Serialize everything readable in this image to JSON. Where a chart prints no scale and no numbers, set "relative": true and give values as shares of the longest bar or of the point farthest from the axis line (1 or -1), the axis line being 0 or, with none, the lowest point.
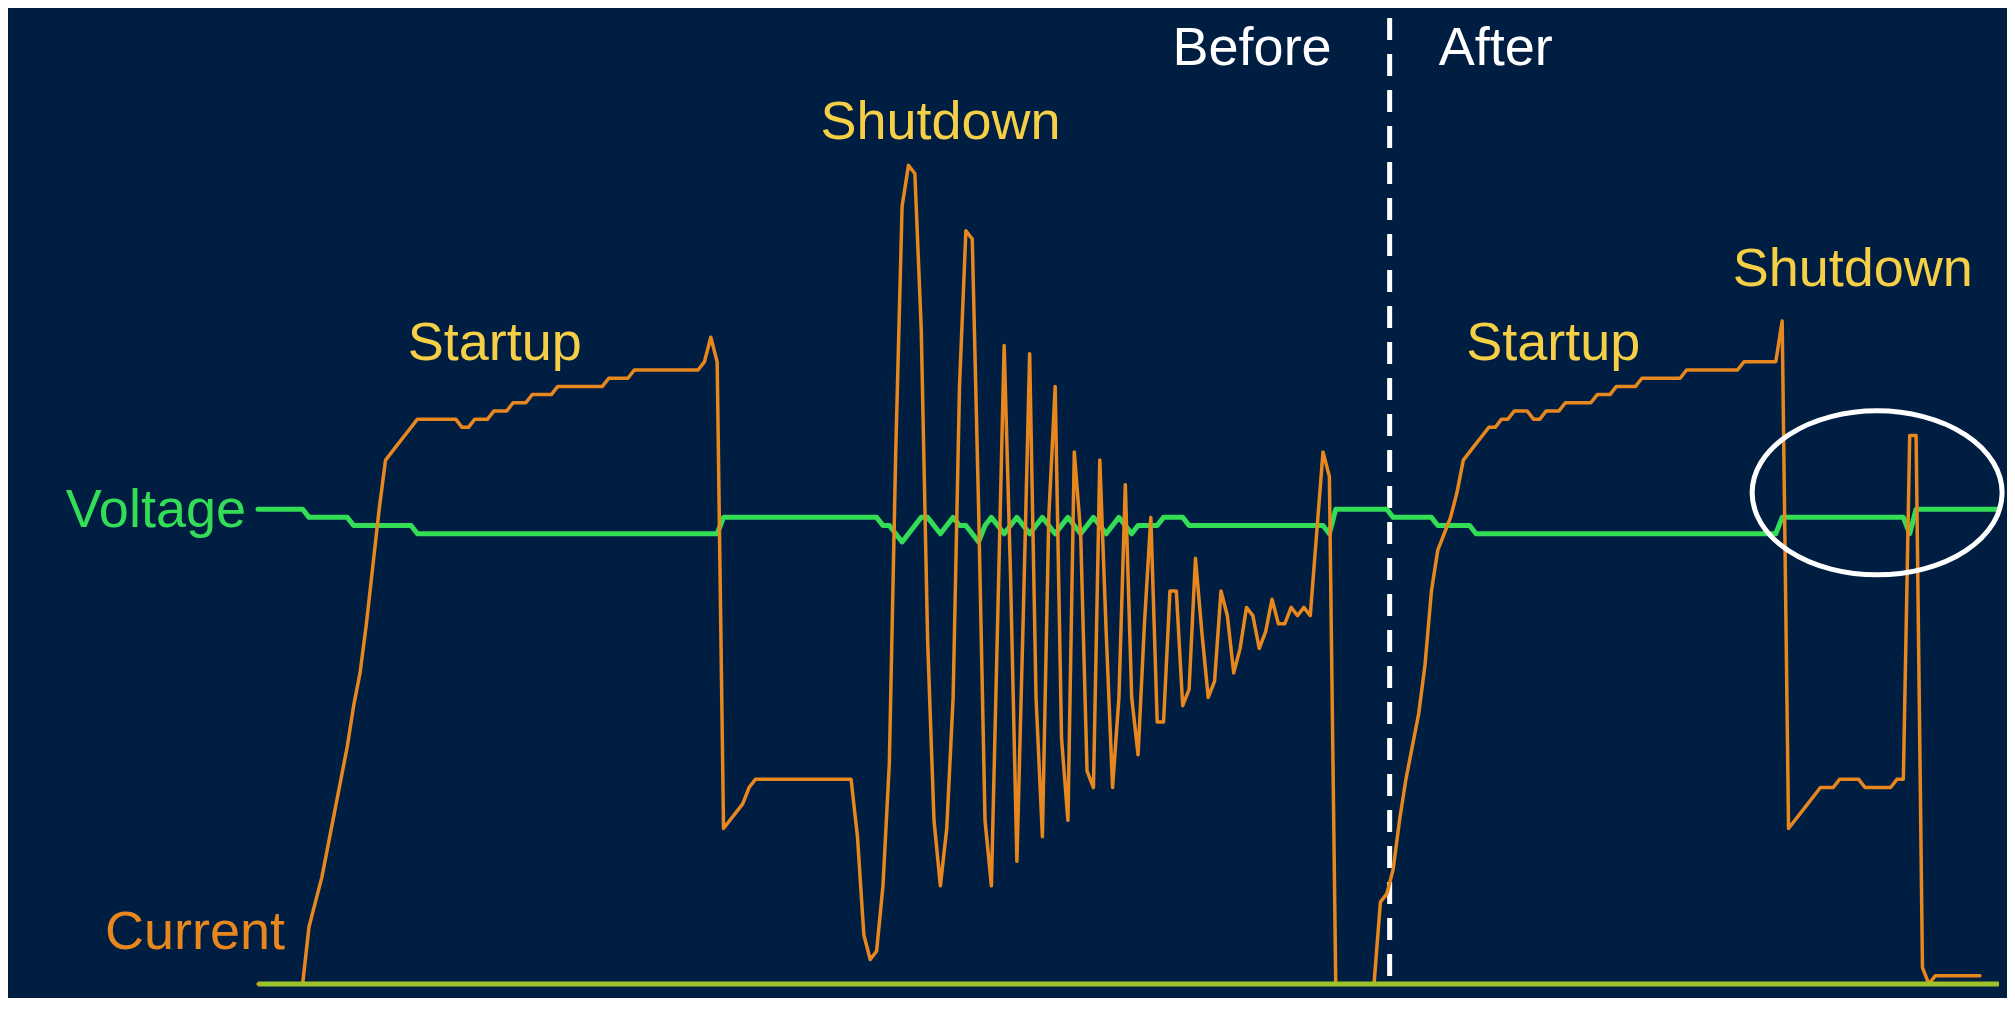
{
  "chart_data": {
    "type": "line",
    "relative": true,
    "marker": "none",
    "line_style": "solid",
    "categories": [
      null,
      null,
      null,
      null,
      null,
      null,
      null,
      null,
      null,
      null,
      null,
      null,
      null,
      null,
      null,
      null,
      null,
      null,
      null,
      null,
      null,
      null,
      null,
      null,
      null,
      null,
      null,
      null,
      null,
      null,
      null,
      null,
      null,
      null,
      null,
      null,
      null,
      null,
      null,
      null,
      null,
      null,
      null,
      null,
      null,
      null,
      null,
      null,
      null,
      null,
      null,
      null,
      null,
      null,
      null,
      null,
      null,
      null,
      null,
      null,
      null,
      null,
      null,
      null,
      null,
      null,
      null,
      null,
      null,
      null,
      null,
      null,
      null,
      null,
      null,
      null,
      null,
      null,
      null,
      null,
      null,
      null,
      null,
      null,
      null,
      null,
      null,
      null,
      null,
      null,
      null,
      null,
      null,
      null,
      null,
      null,
      null,
      null,
      null,
      null,
      null,
      null,
      null,
      null,
      null,
      null,
      null,
      null,
      null,
      null,
      null,
      null,
      null,
      null,
      null,
      null,
      null,
      null,
      null,
      null,
      null,
      null,
      null,
      null,
      null,
      null,
      null,
      null,
      null,
      null,
      null,
      null,
      null,
      null,
      null,
      null,
      null,
      null,
      null,
      null,
      null,
      null,
      null,
      null,
      null,
      null,
      null,
      null,
      null,
      null,
      null,
      null,
      null,
      null,
      null,
      null,
      null,
      null,
      null,
      null,
      null,
      null,
      null,
      null,
      null,
      null,
      null,
      null,
      null,
      null,
      null,
      null,
      null,
      null,
      null,
      null,
      null,
      null,
      null,
      null,
      null,
      null,
      null,
      null,
      null,
      null,
      null,
      null,
      null,
      null,
      null,
      null,
      null,
      null,
      null,
      null,
      null,
      null,
      null,
      null,
      null,
      null,
      null,
      null,
      null,
      null,
      null,
      null,
      null,
      null,
      null,
      null,
      null,
      null,
      null,
      null,
      null,
      null,
      null,
      null,
      null,
      null,
      null,
      null,
      null,
      null,
      null,
      null,
      null,
      null,
      null,
      null,
      null,
      null,
      null,
      null,
      null,
      null,
      null,
      null,
      null,
      null,
      null,
      null,
      null,
      null,
      null,
      null,
      null,
      null,
      null,
      null,
      null,
      null,
      null,
      null,
      null,
      null,
      null,
      null,
      null,
      null,
      null,
      null,
      null,
      null,
      null,
      null,
      null,
      null,
      null,
      null,
      null,
      null
    ],
    "series": [
      {
        "name": "Voltage",
        "color": "#33dd55",
        "values": [
          0.58,
          0.58,
          0.58,
          0.58,
          0.58,
          0.58,
          0.58,
          0.58,
          0.57,
          0.57,
          0.57,
          0.57,
          0.57,
          0.57,
          0.57,
          0.56,
          0.56,
          0.56,
          0.56,
          0.56,
          0.56,
          0.56,
          0.56,
          0.56,
          0.56,
          0.55,
          0.55,
          0.55,
          0.55,
          0.55,
          0.55,
          0.55,
          0.55,
          0.55,
          0.55,
          0.55,
          0.55,
          0.55,
          0.55,
          0.55,
          0.55,
          0.55,
          0.55,
          0.55,
          0.55,
          0.55,
          0.55,
          0.55,
          0.55,
          0.55,
          0.55,
          0.55,
          0.55,
          0.55,
          0.55,
          0.55,
          0.55,
          0.55,
          0.55,
          0.55,
          0.55,
          0.55,
          0.55,
          0.55,
          0.55,
          0.55,
          0.55,
          0.55,
          0.55,
          0.55,
          0.55,
          0.55,
          0.55,
          0.57,
          0.57,
          0.57,
          0.57,
          0.57,
          0.57,
          0.57,
          0.57,
          0.57,
          0.57,
          0.57,
          0.57,
          0.57,
          0.57,
          0.57,
          0.57,
          0.57,
          0.57,
          0.57,
          0.57,
          0.57,
          0.57,
          0.57,
          0.57,
          0.57,
          0.56,
          0.56,
          0.55,
          0.54,
          0.55,
          0.56,
          0.57,
          0.57,
          0.56,
          0.55,
          0.56,
          0.57,
          0.56,
          0.56,
          0.55,
          0.54,
          0.56,
          0.57,
          0.56,
          0.55,
          0.56,
          0.57,
          0.56,
          0.55,
          0.56,
          0.57,
          0.56,
          0.55,
          0.56,
          0.57,
          0.56,
          0.55,
          0.56,
          0.57,
          0.56,
          0.55,
          0.56,
          0.57,
          0.56,
          0.55,
          0.56,
          0.56,
          0.56,
          0.56,
          0.57,
          0.57,
          0.57,
          0.57,
          0.56,
          0.56,
          0.56,
          0.56,
          0.56,
          0.56,
          0.56,
          0.56,
          0.56,
          0.56,
          0.56,
          0.56,
          0.56,
          0.56,
          0.56,
          0.56,
          0.56,
          0.56,
          0.56,
          0.56,
          0.56,
          0.56,
          0.55,
          0.58,
          0.58,
          0.58,
          0.58,
          0.58,
          0.58,
          0.58,
          0.58,
          0.58,
          0.57,
          0.57,
          0.57,
          0.57,
          0.57,
          0.57,
          0.57,
          0.56,
          0.56,
          0.56,
          0.56,
          0.56,
          0.56,
          0.55,
          0.55,
          0.55,
          0.55,
          0.55,
          0.55,
          0.55,
          0.55,
          0.55,
          0.55,
          0.55,
          0.55,
          0.55,
          0.55,
          0.55,
          0.55,
          0.55,
          0.55,
          0.55,
          0.55,
          0.55,
          0.55,
          0.55,
          0.55,
          0.55,
          0.55,
          0.55,
          0.55,
          0.55,
          0.55,
          0.55,
          0.55,
          0.55,
          0.55,
          0.55,
          0.55,
          0.55,
          0.55,
          0.55,
          0.55,
          0.55,
          0.55,
          0.55,
          0.55,
          0.55,
          0.55,
          0.55,
          0.55,
          0.57,
          0.57,
          0.57,
          0.57,
          0.57,
          0.57,
          0.57,
          0.57,
          0.57,
          0.57,
          0.57,
          0.57,
          0.57,
          0.57,
          0.57,
          0.57,
          0.57,
          0.57,
          0.57,
          0.57,
          0.55,
          0.58,
          0.58,
          0.58,
          0.58,
          0.58,
          0.58,
          0.58,
          0.58,
          0.58,
          0.58,
          0.58,
          0.58,
          0.58,
          0.58
        ]
      },
      {
        "name": "Current",
        "color": "#e8871e",
        "values": [
          0,
          0,
          0,
          0,
          0,
          0,
          0,
          0,
          0.07,
          0.1,
          0.13,
          0.17,
          0.21,
          0.25,
          0.29,
          0.34,
          0.38,
          0.44,
          0.51,
          0.58,
          0.64,
          0.65,
          0.66,
          0.67,
          0.68,
          0.69,
          0.69,
          0.69,
          0.69,
          0.69,
          0.69,
          0.69,
          0.68,
          0.68,
          0.69,
          0.69,
          0.69,
          0.7,
          0.7,
          0.7,
          0.71,
          0.71,
          0.71,
          0.72,
          0.72,
          0.72,
          0.72,
          0.73,
          0.73,
          0.73,
          0.73,
          0.73,
          0.73,
          0.73,
          0.73,
          0.74,
          0.74,
          0.74,
          0.74,
          0.75,
          0.75,
          0.75,
          0.75,
          0.75,
          0.75,
          0.75,
          0.75,
          0.75,
          0.75,
          0.75,
          0.76,
          0.79,
          0.76,
          0.19,
          0.2,
          0.21,
          0.22,
          0.24,
          0.25,
          0.25,
          0.25,
          0.25,
          0.25,
          0.25,
          0.25,
          0.25,
          0.25,
          0.25,
          0.25,
          0.25,
          0.25,
          0.25,
          0.25,
          0.25,
          0.18,
          0.06,
          0.03,
          0.04,
          0.12,
          0.27,
          0.65,
          0.95,
          1.0,
          0.99,
          0.8,
          0.42,
          0.2,
          0.12,
          0.19,
          0.35,
          0.73,
          0.92,
          0.91,
          0.58,
          0.2,
          0.12,
          0.45,
          0.78,
          0.5,
          0.15,
          0.45,
          0.77,
          0.35,
          0.18,
          0.57,
          0.73,
          0.3,
          0.2,
          0.65,
          0.55,
          0.26,
          0.24,
          0.64,
          0.43,
          0.24,
          0.35,
          0.61,
          0.35,
          0.28,
          0.44,
          0.57,
          0.32,
          0.32,
          0.48,
          0.48,
          0.34,
          0.36,
          0.52,
          0.43,
          0.35,
          0.37,
          0.48,
          0.45,
          0.38,
          0.41,
          0.46,
          0.45,
          0.41,
          0.43,
          0.47,
          0.44,
          0.44,
          0.46,
          0.45,
          0.46,
          0.45,
          0.55,
          0.65,
          0.62,
          0,
          0,
          0,
          0,
          0,
          0,
          0,
          0.1,
          0.11,
          0.14,
          0.2,
          0.25,
          0.29,
          0.33,
          0.39,
          0.48,
          0.53,
          0.55,
          0.57,
          0.6,
          0.64,
          0.65,
          0.66,
          0.67,
          0.68,
          0.68,
          0.69,
          0.69,
          0.7,
          0.7,
          0.7,
          0.69,
          0.69,
          0.7,
          0.7,
          0.7,
          0.71,
          0.71,
          0.71,
          0.71,
          0.71,
          0.72,
          0.72,
          0.72,
          0.73,
          0.73,
          0.73,
          0.73,
          0.74,
          0.74,
          0.74,
          0.74,
          0.74,
          0.74,
          0.74,
          0.75,
          0.75,
          0.75,
          0.75,
          0.75,
          0.75,
          0.75,
          0.75,
          0.75,
          0.76,
          0.76,
          0.76,
          0.76,
          0.76,
          0.76,
          0.81,
          0.19,
          0.2,
          0.21,
          0.22,
          0.23,
          0.24,
          0.24,
          0.24,
          0.25,
          0.25,
          0.25,
          0.25,
          0.24,
          0.24,
          0.24,
          0.24,
          0.24,
          0.25,
          0.25,
          0.67,
          0.67,
          0.02,
          0,
          0.01,
          0.01,
          0.01,
          0.01,
          0.01,
          0.01,
          0.01,
          0.01,
          null,
          null,
          null
        ]
      }
    ],
    "annotations": [
      "Startup",
      "Shutdown",
      "Before",
      "After",
      "Startup",
      "Shutdown"
    ]
  }
}
